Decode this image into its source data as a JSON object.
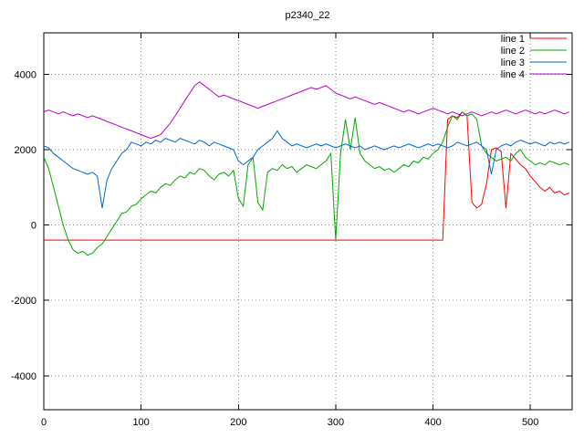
{
  "page": {
    "background": "#ffffff"
  },
  "chart_data": {
    "type": "line",
    "title": "p2340_22",
    "xlabel": "",
    "ylabel": "",
    "xlim": [
      0,
      543
    ],
    "ylim": [
      -4900,
      5100
    ],
    "xticks": [
      0,
      100,
      200,
      300,
      400,
      500
    ],
    "yticks": [
      -4000,
      -2000,
      0,
      2000,
      4000
    ],
    "grid": true,
    "legend_position": "top-right-inside",
    "x_start": 0,
    "x_step": 5,
    "series": [
      {
        "name": "line 1",
        "color": "#ff0000",
        "values": [
          -400,
          -400,
          -400,
          -400,
          -400,
          -400,
          -400,
          -400,
          -400,
          -400,
          -400,
          -400,
          -400,
          -400,
          -400,
          -400,
          -400,
          -400,
          -400,
          -400,
          -400,
          -400,
          -400,
          -400,
          -400,
          -400,
          -400,
          -400,
          -400,
          -400,
          -400,
          -400,
          -400,
          -400,
          -400,
          -400,
          -400,
          -400,
          -400,
          -400,
          -400,
          -400,
          -400,
          -400,
          -400,
          -400,
          -400,
          -400,
          -400,
          -400,
          -400,
          -400,
          -400,
          -400,
          -400,
          -400,
          -400,
          -400,
          -400,
          -400,
          -400,
          -400,
          -400,
          -400,
          -400,
          -400,
          -400,
          -400,
          -400,
          -400,
          -400,
          -400,
          -400,
          -400,
          -400,
          -400,
          -400,
          -400,
          -400,
          -400,
          -400,
          -400,
          -400,
          2800,
          2900,
          2850,
          3000,
          2900,
          600,
          450,
          550,
          1100,
          2000,
          2050,
          1950,
          450,
          1900,
          1750,
          1600,
          1500,
          1300,
          1150,
          1000,
          900,
          1000,
          850,
          900,
          800,
          850
        ]
      },
      {
        "name": "line 2",
        "color": "#00a800",
        "values": [
          1800,
          1500,
          1000,
          500,
          0,
          -400,
          -650,
          -750,
          -700,
          -800,
          -750,
          -600,
          -500,
          -300,
          -100,
          100,
          300,
          350,
          500,
          550,
          700,
          800,
          900,
          850,
          1000,
          1100,
          1050,
          1200,
          1300,
          1250,
          1400,
          1350,
          1500,
          1450,
          1300,
          1200,
          1350,
          1400,
          1300,
          1450,
          700,
          500,
          1600,
          1800,
          600,
          400,
          1400,
          1500,
          1450,
          1600,
          1500,
          1550,
          1400,
          1500,
          1600,
          1550,
          1500,
          1600,
          1700,
          1900,
          -400,
          1900,
          2800,
          2000,
          2850,
          1900,
          1700,
          1600,
          1500,
          1550,
          1450,
          1500,
          1400,
          1500,
          1600,
          1550,
          1700,
          1650,
          1800,
          1750,
          1900,
          2000,
          2200,
          2600,
          2900,
          2800,
          3000,
          2900,
          2950,
          2800,
          2100,
          1900,
          1800,
          1700,
          1750,
          1800,
          1700,
          1900,
          2000,
          1800,
          1700,
          1600,
          1650,
          1600,
          1700,
          1650,
          1600,
          1650,
          1600
        ]
      },
      {
        "name": "line 3",
        "color": "#0066cc",
        "values": [
          2100,
          2050,
          1900,
          1800,
          1700,
          1600,
          1500,
          1450,
          1400,
          1350,
          1400,
          1300,
          450,
          1200,
          1500,
          1700,
          1900,
          2000,
          2200,
          2150,
          2100,
          2200,
          2150,
          2250,
          2200,
          2300,
          2250,
          2200,
          2300,
          2250,
          2200,
          2150,
          2250,
          2200,
          2100,
          2200,
          2150,
          2100,
          2050,
          2000,
          1700,
          1600,
          1700,
          1800,
          2000,
          2100,
          2200,
          2300,
          2500,
          2300,
          2200,
          2100,
          2150,
          2100,
          2050,
          2100,
          2150,
          2100,
          2150,
          2100,
          2050,
          2100,
          2150,
          2100,
          2050,
          2100,
          2000,
          2050,
          2100,
          2050,
          2000,
          2050,
          2100,
          2050,
          2100,
          2150,
          2100,
          2050,
          2100,
          2150,
          2100,
          2150,
          2100,
          2050,
          2100,
          2200,
          2150,
          2100,
          2150,
          2200,
          2100,
          2000,
          1350,
          2000,
          2100,
          2150,
          2100,
          2200,
          2250,
          2200,
          2150,
          2200,
          2150,
          2100,
          2200,
          2150,
          2200,
          2150,
          2200
        ]
      },
      {
        "name": "line 4",
        "color": "#bb00cc",
        "values": [
          3000,
          3050,
          3000,
          2950,
          3000,
          2950,
          2900,
          2950,
          2900,
          2850,
          2900,
          2850,
          2800,
          2750,
          2700,
          2650,
          2600,
          2550,
          2500,
          2450,
          2400,
          2350,
          2300,
          2350,
          2400,
          2550,
          2700,
          2900,
          3100,
          3300,
          3500,
          3700,
          3800,
          3700,
          3600,
          3500,
          3400,
          3450,
          3400,
          3350,
          3300,
          3250,
          3200,
          3150,
          3100,
          3150,
          3200,
          3250,
          3300,
          3350,
          3400,
          3450,
          3500,
          3550,
          3600,
          3650,
          3600,
          3650,
          3700,
          3600,
          3500,
          3450,
          3400,
          3350,
          3400,
          3350,
          3300,
          3250,
          3200,
          3250,
          3200,
          3150,
          3100,
          3050,
          3000,
          3050,
          3000,
          2950,
          3000,
          3050,
          3100,
          3050,
          3000,
          2950,
          3000,
          2950,
          2900,
          2950,
          3000,
          2950,
          2900,
          2950,
          3000,
          2950,
          3000,
          3050,
          3000,
          2950,
          3000,
          3050,
          3000,
          2950,
          3000,
          2950,
          3000,
          3050,
          3000,
          2950,
          3000
        ]
      }
    ]
  }
}
